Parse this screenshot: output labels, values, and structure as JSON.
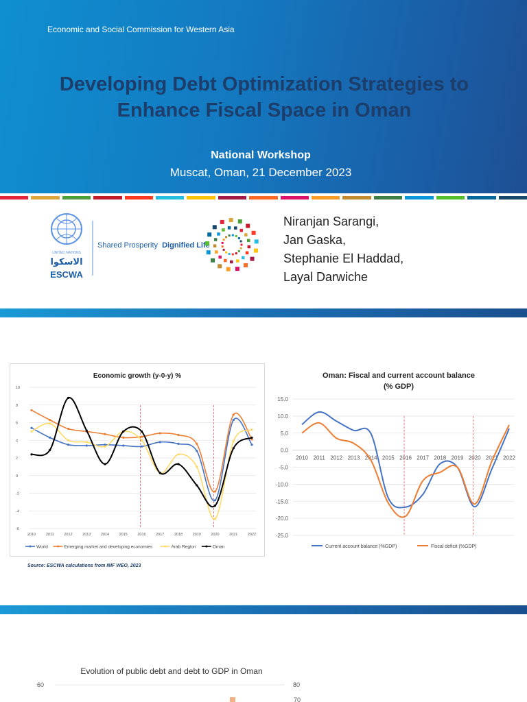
{
  "header": {
    "organization": "Economic and Social Commission for Western Asia",
    "title_line1": "Developing Debt Optimization Strategies to",
    "title_line2": "Enhance Fiscal Space in Oman",
    "event": "National Workshop",
    "place_date": "Muscat, Oman, 21 December 2023"
  },
  "logos": {
    "un_label": "UNITED NATIONS",
    "arabic_label": "الاسكوا",
    "escwa_label": "ESCWA",
    "tagline_plain": "Shared Prosperity",
    "tagline_bold": "Dignified Life"
  },
  "authors": [
    "Niranjan Sarangi,",
    "Jan Gaska,",
    "Stephanie El Haddad,",
    "Layal Darwiche"
  ],
  "stripe_colors": [
    "#e5243b",
    "#dda63a",
    "#4c9f38",
    "#c5192d",
    "#ff3a21",
    "#26bde2",
    "#fcc30b",
    "#a21942",
    "#fd6925",
    "#dd1367",
    "#fd9d24",
    "#bf8b2e",
    "#3f7e44",
    "#0a97d9",
    "#56c02b",
    "#00689d",
    "#19486a"
  ],
  "source_note": "Source: ESCWA calculations from IMF WEO, 2023",
  "chart_data": [
    {
      "type": "line",
      "title": "Economic growth (y-0-y) %",
      "x": [
        "2010",
        "2011",
        "2012",
        "2013",
        "2014",
        "2015",
        "2016",
        "2017",
        "2018",
        "2019",
        "2020",
        "2021",
        "2022"
      ],
      "ylim": [
        -6,
        10
      ],
      "yticks": [
        10,
        8,
        6,
        4,
        2,
        0,
        -2,
        -4,
        -6
      ],
      "vlines": [
        "2016",
        "2020"
      ],
      "legend": "bottom",
      "series": [
        {
          "name": "World",
          "color": "#4472c4",
          "values": [
            5.4,
            4.3,
            3.5,
            3.4,
            3.5,
            3.4,
            3.3,
            3.8,
            3.6,
            2.8,
            -2.8,
            6.3,
            3.5
          ]
        },
        {
          "name": "Emerging market and developing economies",
          "color": "#ed7d31",
          "values": [
            7.4,
            6.3,
            5.3,
            5.0,
            4.7,
            4.3,
            4.4,
            4.8,
            4.6,
            3.6,
            -1.8,
            6.9,
            4.1
          ]
        },
        {
          "name": "Arab Region",
          "color": "#ffd966",
          "values": [
            5.0,
            5.9,
            4.0,
            3.8,
            3.3,
            5.0,
            4.0,
            0.3,
            2.4,
            1.0,
            -4.9,
            3.9,
            5.2
          ]
        },
        {
          "name": "Oman",
          "color": "#000000",
          "values": [
            2.4,
            2.9,
            8.8,
            5.1,
            1.3,
            5.0,
            5.0,
            0.3,
            1.3,
            -1.1,
            -3.4,
            3.1,
            4.3
          ]
        }
      ]
    },
    {
      "type": "line",
      "title_line1": "Oman: Fiscal and current account balance",
      "title_line2": "(% GDP)",
      "x": [
        "2010",
        "2011",
        "2012",
        "2013",
        "2014",
        "2015",
        "2016",
        "2017",
        "2018",
        "2019",
        "2020",
        "2021",
        "2022"
      ],
      "ylim": [
        -25,
        15
      ],
      "yticks": [
        "15.0",
        "10.0",
        "5.0",
        "0.0",
        "-5.0",
        "-10.0",
        "-15.0",
        "-20.0",
        "-25.0"
      ],
      "vlines": [
        "2016",
        "2020"
      ],
      "legend": "bottom",
      "series": [
        {
          "name": "Current account balance (%GDP)",
          "color": "#4472c4",
          "values": [
            7.5,
            11.2,
            8.5,
            5.8,
            4.8,
            -14.0,
            -16.7,
            -13.0,
            -4.0,
            -5.0,
            -16.6,
            -5.5,
            6.3
          ]
        },
        {
          "name": "Fiscal deficit (%GDP)",
          "color": "#ed7d31",
          "values": [
            5.0,
            8.0,
            3.5,
            2.0,
            -3.0,
            -15.5,
            -19.4,
            -9.0,
            -6.5,
            -5.0,
            -15.8,
            -3.2,
            7.4
          ]
        }
      ]
    },
    {
      "type": "bar",
      "title": "Evolution of public debt and debt to GDP in Oman",
      "y_left_top": "60",
      "y_right_top": "80",
      "y_right_next": "70"
    }
  ]
}
